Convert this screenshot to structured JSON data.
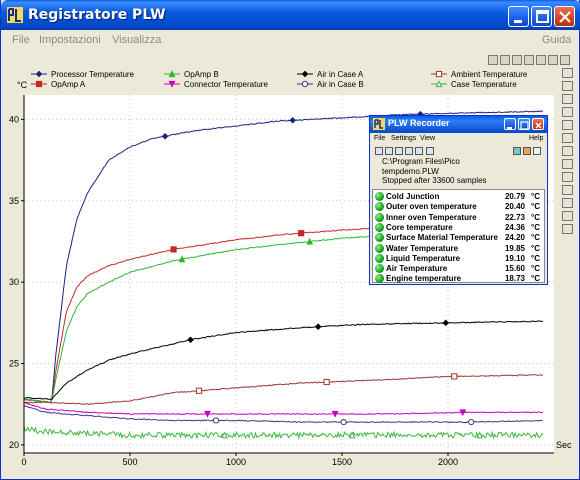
{
  "window": {
    "title": "Registratore PLW"
  },
  "menu": {
    "items": [
      "File",
      "Impostazioni",
      "Visualizza"
    ],
    "help": "Guida"
  },
  "chart_data": {
    "type": "line",
    "xlabel": "Sec",
    "ylabel": "°C",
    "xlim": [
      0,
      2500
    ],
    "ylim": [
      19.5,
      41.5
    ],
    "x_ticks": [
      0,
      500,
      1000,
      1500,
      2000
    ],
    "y_ticks": [
      20,
      25,
      30,
      35,
      40
    ],
    "legend": [
      {
        "name": "Processor Temperature",
        "color": "#1a237e",
        "marker": "filled-diamond"
      },
      {
        "name": "OpAmp A",
        "color": "#c62828",
        "marker": "filled-square"
      },
      {
        "name": "OpAmp B",
        "color": "#2db82d",
        "marker": "filled-triangle"
      },
      {
        "name": "Connector Temperature",
        "color": "#c400c4",
        "marker": "filled-down-triangle"
      },
      {
        "name": "Air in Case A",
        "color": "#000000",
        "marker": "filled-diamond"
      },
      {
        "name": "Air in Case B",
        "color": "#3a3a7a",
        "marker": "open-circle"
      },
      {
        "name": "Ambient Temperature",
        "color": "#a03434",
        "marker": "open-square"
      },
      {
        "name": "Case Temperature",
        "color": "#3cb83c",
        "marker": "open-triangle"
      }
    ],
    "series": [
      {
        "name": "Processor Temperature",
        "x": [
          0,
          130,
          150,
          200,
          250,
          300,
          400,
          500,
          600,
          800,
          1000,
          1200,
          1500,
          1800,
          2100,
          2450
        ],
        "y": [
          22.8,
          22.6,
          25.5,
          31.0,
          33.9,
          35.5,
          37.5,
          38.3,
          38.8,
          39.3,
          39.6,
          39.9,
          40.1,
          40.3,
          40.4,
          40.5
        ]
      },
      {
        "name": "OpAmp A",
        "x": [
          0,
          130,
          150,
          200,
          250,
          300,
          400,
          500,
          700,
          1000,
          1200,
          1500,
          2000,
          2450
        ],
        "y": [
          22.8,
          22.6,
          24.5,
          28.2,
          29.7,
          30.4,
          31.0,
          31.4,
          32.0,
          32.6,
          32.9,
          33.2,
          33.6,
          33.8
        ]
      },
      {
        "name": "OpAmp B",
        "x": [
          0,
          130,
          150,
          200,
          250,
          300,
          400,
          500,
          700,
          1000,
          1200,
          1500,
          2000,
          2450
        ],
        "y": [
          22.8,
          22.6,
          24.0,
          27.0,
          28.5,
          29.3,
          30.0,
          30.6,
          31.3,
          32.0,
          32.3,
          32.7,
          33.1,
          33.3
        ]
      },
      {
        "name": "Air in Case A",
        "x": [
          0,
          130,
          200,
          300,
          400,
          500,
          600,
          800,
          1000,
          1300,
          1600,
          2000,
          2450
        ],
        "y": [
          22.9,
          22.8,
          23.8,
          24.6,
          25.2,
          25.6,
          25.9,
          26.5,
          26.9,
          27.2,
          27.4,
          27.5,
          27.6
        ]
      },
      {
        "name": "Ambient Temperature",
        "x": [
          0,
          130,
          300,
          500,
          700,
          1000,
          1300,
          1700,
          2000,
          2450
        ],
        "y": [
          22.6,
          22.6,
          22.5,
          22.7,
          23.2,
          23.5,
          23.8,
          24.0,
          24.2,
          24.3
        ]
      },
      {
        "name": "Connector Temperature",
        "x": [
          0,
          100,
          300,
          500,
          700,
          1000,
          1300,
          1700,
          2100,
          2450
        ],
        "y": [
          22.6,
          22.2,
          22.0,
          21.9,
          21.9,
          21.9,
          21.9,
          21.9,
          22.0,
          22.0
        ]
      },
      {
        "name": "Air in Case B",
        "x": [
          0,
          100,
          300,
          500,
          700,
          1000,
          1300,
          1700,
          2100,
          2450
        ],
        "y": [
          22.4,
          22.0,
          21.8,
          21.6,
          21.5,
          21.5,
          21.4,
          21.4,
          21.4,
          21.5
        ]
      },
      {
        "name": "Case Temperature",
        "x": [
          0,
          100,
          300,
          500,
          700,
          1000,
          1300,
          1700,
          2100,
          2450
        ],
        "y": [
          21.0,
          20.8,
          20.7,
          20.6,
          20.6,
          20.6,
          20.6,
          20.6,
          20.6,
          20.6
        ]
      }
    ]
  },
  "recorder": {
    "title": "PLW Recorder",
    "menu": [
      "File",
      "Settings",
      "View"
    ],
    "help": "Help",
    "path": "C:\\Program Files\\Pico",
    "file": "tempdemo.PLW",
    "status": "Stopped after 33600 samples",
    "unit": "°C",
    "rows": [
      {
        "name": "Cold Junction",
        "value": "20.79"
      },
      {
        "name": "Outer oven temperature",
        "value": "20.40"
      },
      {
        "name": "Inner oven Temperature",
        "value": "22.73"
      },
      {
        "name": "Core temperature",
        "value": "24.36"
      },
      {
        "name": "Surface Material Temperature",
        "value": "24.20"
      },
      {
        "name": "Water Temperature",
        "value": "19.85"
      },
      {
        "name": "Liquid Temperature",
        "value": "19.10"
      },
      {
        "name": "Air Temperature",
        "value": "15.60"
      },
      {
        "name": "Engine temperature",
        "value": "18.73"
      }
    ]
  }
}
